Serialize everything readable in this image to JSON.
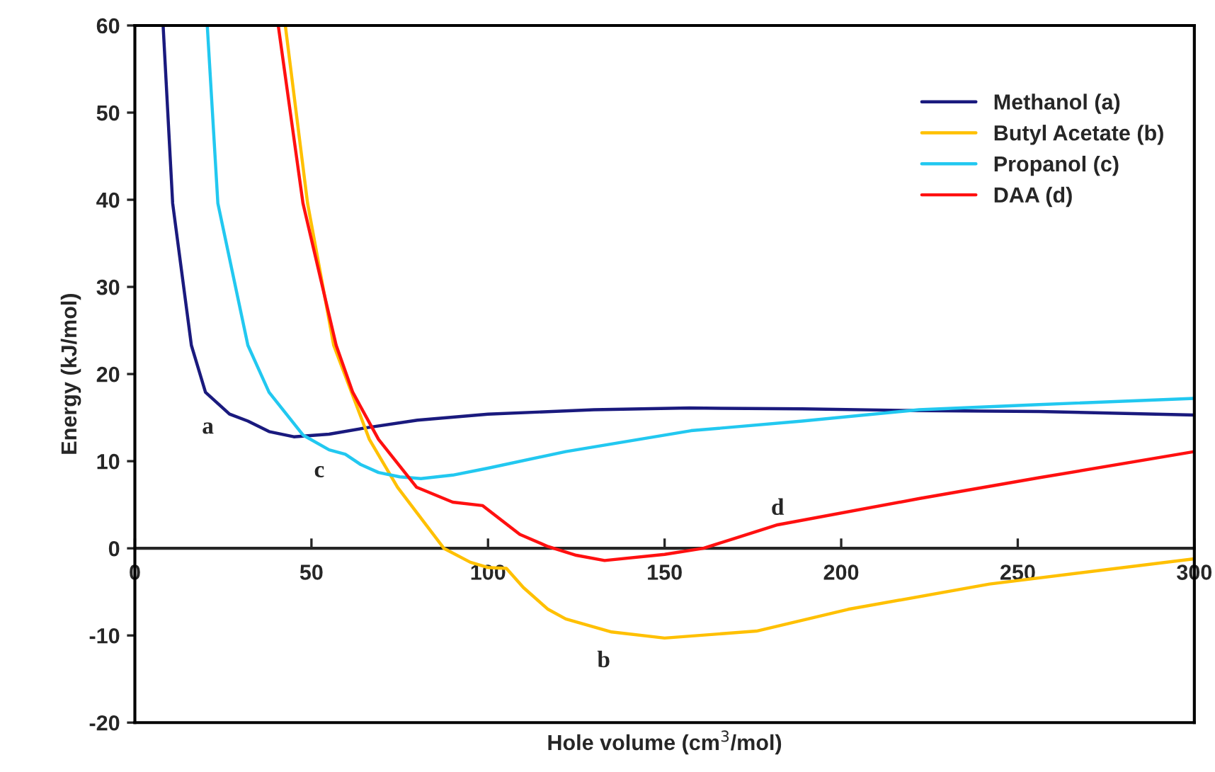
{
  "chart_data": {
    "type": "line",
    "xlabel": "Hole volume (cm$^{3}$/mol)",
    "ylabel": "Energy (kJ/mol)",
    "xlim": [
      0,
      300
    ],
    "ylim": [
      -20,
      60
    ],
    "xticks": [
      0,
      50,
      100,
      150,
      200,
      250,
      300
    ],
    "yticks": [
      -20,
      -10,
      0,
      10,
      20,
      30,
      40,
      50,
      60
    ],
    "grid": false,
    "legend": "top right",
    "marker": "none",
    "line_style": "solid",
    "series": [
      {
        "name": "Methanol (a)",
        "color": "#1a1a7e",
        "x": [
          8,
          10.7,
          16,
          20,
          26.8,
          32,
          38,
          45,
          55,
          65,
          80,
          100,
          130,
          157,
          189,
          222,
          256,
          300
        ],
        "values": [
          60,
          39.6,
          23.3,
          17.9,
          15.4,
          14.6,
          13.4,
          12.8,
          13.1,
          13.8,
          14.7,
          15.4,
          15.9,
          16.1,
          16.0,
          15.8,
          15.7,
          15.3
        ]
      },
      {
        "name": "Butyl Acetate (b)",
        "color": "#ffc000",
        "x": [
          42.6,
          48.9,
          56.3,
          66.4,
          74.4,
          87.5,
          95,
          99.9,
          105.2,
          110,
          117,
          122,
          135,
          150,
          176,
          202,
          242,
          300
        ],
        "values": [
          60,
          39.6,
          23.3,
          12.5,
          7.0,
          0,
          -1.6,
          -2.2,
          -2.3,
          -4.5,
          -7.0,
          -8.1,
          -9.6,
          -10.3,
          -9.5,
          -7.0,
          -4.1,
          -1.2
        ]
      },
      {
        "name": "Propanol (c)",
        "color": "#22c8f0",
        "x": [
          20.5,
          23.5,
          32,
          38,
          47.6,
          55,
          59.6,
          64,
          69,
          75,
          81,
          90,
          100,
          122,
          157.5,
          189,
          222,
          256,
          300
        ],
        "values": [
          60,
          39.6,
          23.3,
          17.9,
          13,
          11.3,
          10.8,
          9.6,
          8.7,
          8.2,
          8.0,
          8.4,
          9.2,
          11.1,
          13.5,
          14.6,
          15.9,
          16.5,
          17.2
        ]
      },
      {
        "name": "DAA (d)",
        "color": "#ff1010",
        "x": [
          40.6,
          47.6,
          57,
          61.7,
          69,
          79.8,
          90,
          98.5,
          109,
          117,
          125,
          133,
          150,
          161,
          182,
          222,
          256,
          300
        ],
        "values": [
          60,
          39.6,
          23.3,
          17.9,
          12.5,
          7.0,
          5.3,
          4.9,
          1.6,
          0.2,
          -0.8,
          -1.4,
          -0.7,
          0,
          2.7,
          5.7,
          8.1,
          11.1
        ]
      }
    ],
    "annotations": [
      {
        "text": "a",
        "x": 26.8,
        "y": 15.4
      },
      {
        "text": "c",
        "x": 55,
        "y": 11.3
      },
      {
        "text": "b",
        "x": 135,
        "y": -9.6
      },
      {
        "text": "d",
        "x": 182,
        "y": 2.7
      }
    ]
  }
}
